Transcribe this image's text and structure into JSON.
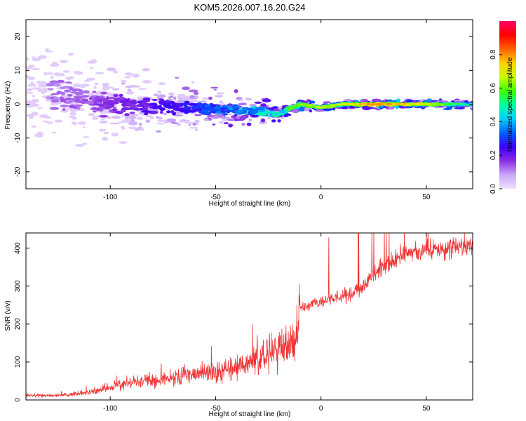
{
  "figure": {
    "title": "KOM5.2026.007.16.20.G24"
  },
  "chart_data": [
    {
      "type": "heatmap",
      "name": "spectrogram",
      "xlabel": "Height of straight line (km)",
      "ylabel": "Frequency (Hz)",
      "xlim": [
        -140,
        72
      ],
      "ylim": [
        -25,
        25
      ],
      "xticks": [
        -100,
        -50,
        0,
        50
      ],
      "yticks": [
        -20,
        -10,
        0,
        10,
        20
      ],
      "colorbar": {
        "label": "Normalized spectral amplitude",
        "range": [
          0,
          1
        ],
        "ticks": [
          0.0,
          0.2,
          0.4,
          0.6,
          0.8
        ],
        "colormap": [
          "#f0e0ff",
          "#c8a8f8",
          "#8a2be2",
          "#3b00ff",
          "#0060ff",
          "#00d0ff",
          "#00ffa0",
          "#40ff00",
          "#c8ff00",
          "#ffd000",
          "#ff6000",
          "#ff0000",
          "#ff0066"
        ]
      },
      "description_profile": {
        "center_frequency": [
          [
            -140,
            4
          ],
          [
            -100,
            0
          ],
          [
            -60,
            -1
          ],
          [
            -30,
            -2
          ],
          [
            -20,
            -3
          ],
          [
            -10,
            0
          ],
          [
            0,
            -1
          ],
          [
            10,
            0
          ],
          [
            20,
            0
          ],
          [
            40,
            0
          ],
          [
            72,
            0
          ]
        ],
        "amplitude": [
          [
            -140,
            0.1
          ],
          [
            -100,
            0.18
          ],
          [
            -60,
            0.3
          ],
          [
            -30,
            0.45
          ],
          [
            -15,
            0.55
          ],
          [
            -5,
            0.6
          ],
          [
            10,
            0.62
          ],
          [
            25,
            0.75
          ],
          [
            40,
            0.7
          ],
          [
            60,
            0.55
          ],
          [
            72,
            0.4
          ]
        ]
      }
    },
    {
      "type": "line",
      "name": "snr",
      "xlabel": "Height of straight line (km)",
      "ylabel": "SNR (v/v)",
      "xlim": [
        -140,
        72
      ],
      "ylim": [
        0,
        440
      ],
      "xticks": [
        -100,
        -50,
        0,
        50
      ],
      "yticks": [
        0,
        100,
        200,
        300,
        400
      ],
      "color": "#ee3333",
      "series": [
        {
          "name": "SNR",
          "x": [
            -140,
            -130,
            -120,
            -110,
            -105,
            -100,
            -95,
            -90,
            -85,
            -80,
            -75,
            -70,
            -65,
            -60,
            -55,
            -50,
            -45,
            -40,
            -35,
            -30,
            -25,
            -20,
            -15,
            -12,
            -10,
            -8,
            -5,
            0,
            5,
            10,
            15,
            20,
            25,
            30,
            35,
            40,
            45,
            50,
            55,
            60,
            65,
            72
          ],
          "values": [
            12,
            12,
            13,
            20,
            25,
            35,
            40,
            45,
            48,
            52,
            55,
            58,
            62,
            66,
            70,
            75,
            80,
            85,
            95,
            105,
            120,
            135,
            145,
            150,
            240,
            245,
            250,
            260,
            265,
            270,
            280,
            300,
            330,
            350,
            370,
            385,
            390,
            395,
            395,
            400,
            402,
            405
          ]
        }
      ]
    }
  ]
}
